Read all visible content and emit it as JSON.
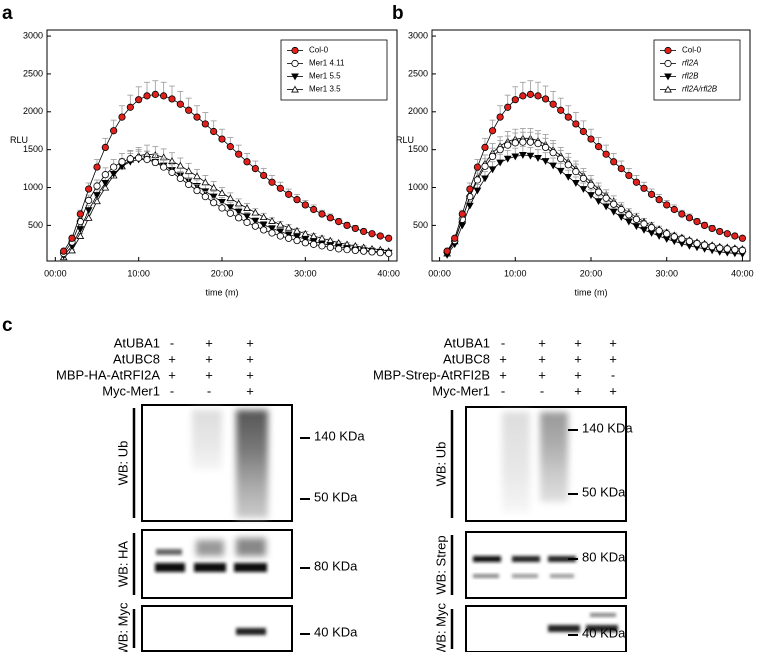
{
  "chart_data": [
    {
      "type": "line",
      "panel": "a",
      "y_label": "RLU",
      "x_label": "time (m)",
      "x": [
        1,
        2,
        3,
        4,
        5,
        6,
        7,
        8,
        9,
        10,
        11,
        12,
        13,
        14,
        15,
        16,
        17,
        18,
        19,
        20,
        21,
        22,
        23,
        24,
        25,
        26,
        27,
        28,
        29,
        30,
        31,
        32,
        33,
        34,
        35,
        36,
        37,
        38,
        39,
        40
      ],
      "xlim": [
        -1,
        41
      ],
      "xticks": [
        {
          "value": 0,
          "label": "00:00"
        },
        {
          "value": 10,
          "label": "10:00"
        },
        {
          "value": 20,
          "label": "20:00"
        },
        {
          "value": 30,
          "label": "30:00"
        },
        {
          "value": 40,
          "label": "40:00"
        }
      ],
      "ylim": [
        30,
        3080
      ],
      "yticks": [
        500,
        1000,
        1500,
        2000,
        2500,
        3000
      ],
      "legend": "top-right",
      "series": [
        {
          "name": "Col-0",
          "color": "#e3211c",
          "marker": "circle",
          "filled": true,
          "italic": false,
          "values": [
            160,
            330,
            650,
            980,
            1270,
            1530,
            1750,
            1930,
            2060,
            2160,
            2210,
            2230,
            2210,
            2170,
            2100,
            2020,
            1930,
            1840,
            1740,
            1640,
            1540,
            1440,
            1340,
            1250,
            1160,
            1070,
            990,
            910,
            840,
            770,
            710,
            650,
            600,
            550,
            500,
            460,
            420,
            390,
            360,
            330
          ],
          "errors": [
            10,
            30,
            50,
            80,
            100,
            120,
            140,
            150,
            160,
            170,
            180,
            180,
            180,
            170,
            170,
            160,
            150,
            150,
            140,
            130,
            120,
            120,
            110,
            100,
            90,
            90,
            80,
            70,
            70,
            60,
            60,
            50,
            50,
            40,
            40,
            40,
            30,
            30,
            30,
            30
          ]
        },
        {
          "name": "Mer1 4.11",
          "color": "#000000",
          "marker": "circle",
          "filled": false,
          "italic": false,
          "values": [
            130,
            280,
            550,
            830,
            1020,
            1170,
            1270,
            1340,
            1380,
            1390,
            1370,
            1330,
            1270,
            1200,
            1120,
            1040,
            960,
            880,
            800,
            730,
            660,
            600,
            540,
            490,
            440,
            400,
            360,
            330,
            300,
            270,
            250,
            230,
            210,
            190,
            180,
            170,
            160,
            150,
            140,
            130
          ],
          "errors": [
            10,
            20,
            40,
            70,
            80,
            90,
            100,
            110,
            110,
            110,
            110,
            110,
            100,
            100,
            90,
            80,
            80,
            70,
            60,
            60,
            50,
            50,
            40,
            40,
            40,
            30,
            30,
            30,
            20,
            20,
            20,
            20,
            20,
            20,
            10,
            10,
            10,
            10,
            10,
            10
          ]
        },
        {
          "name": "Mer1 5.5",
          "color": "#000000",
          "marker": "triangle-down",
          "filled": true,
          "italic": false,
          "values": [
            100,
            230,
            450,
            700,
            900,
            1060,
            1180,
            1280,
            1340,
            1370,
            1370,
            1340,
            1290,
            1230,
            1160,
            1090,
            1020,
            950,
            880,
            810,
            740,
            680,
            620,
            560,
            510,
            460,
            420,
            380,
            350,
            320,
            290,
            260,
            240,
            220,
            200,
            180,
            170,
            160,
            150,
            140
          ],
          "errors": [
            10,
            20,
            40,
            60,
            70,
            80,
            90,
            100,
            110,
            110,
            110,
            110,
            100,
            100,
            90,
            90,
            80,
            80,
            70,
            60,
            60,
            50,
            50,
            40,
            40,
            40,
            30,
            30,
            30,
            30,
            20,
            20,
            20,
            20,
            20,
            10,
            10,
            10,
            10,
            10
          ]
        },
        {
          "name": "Mer1 3.5",
          "color": "#000000",
          "marker": "triangle-up",
          "filled": false,
          "italic": false,
          "values": [
            80,
            170,
            360,
            600,
            820,
            1000,
            1160,
            1280,
            1370,
            1420,
            1440,
            1430,
            1400,
            1350,
            1290,
            1220,
            1150,
            1070,
            1000,
            930,
            860,
            790,
            730,
            670,
            610,
            560,
            510,
            470,
            430,
            390,
            360,
            330,
            300,
            270,
            250,
            230,
            210,
            190,
            180,
            160
          ],
          "errors": [
            10,
            10,
            30,
            50,
            70,
            80,
            90,
            100,
            110,
            110,
            120,
            110,
            110,
            110,
            100,
            100,
            90,
            90,
            80,
            70,
            70,
            60,
            60,
            50,
            50,
            40,
            40,
            40,
            30,
            30,
            30,
            30,
            20,
            20,
            20,
            20,
            20,
            20,
            10,
            10
          ]
        }
      ]
    },
    {
      "type": "line",
      "panel": "b",
      "y_label": "RLU",
      "x_label": "time (m)",
      "x": [
        1,
        2,
        3,
        4,
        5,
        6,
        7,
        8,
        9,
        10,
        11,
        12,
        13,
        14,
        15,
        16,
        17,
        18,
        19,
        20,
        21,
        22,
        23,
        24,
        25,
        26,
        27,
        28,
        29,
        30,
        31,
        32,
        33,
        34,
        35,
        36,
        37,
        38,
        39,
        40
      ],
      "xlim": [
        -1,
        41
      ],
      "xticks": [
        {
          "value": 0,
          "label": "00:00"
        },
        {
          "value": 10,
          "label": "10:00"
        },
        {
          "value": 20,
          "label": "20:00"
        },
        {
          "value": 30,
          "label": "30:00"
        },
        {
          "value": 40,
          "label": "40:00"
        }
      ],
      "ylim": [
        30,
        3080
      ],
      "yticks": [
        500,
        1000,
        1500,
        2000,
        2500,
        3000
      ],
      "legend": "top-right",
      "series": [
        {
          "name": "Col-0",
          "color": "#e3211c",
          "marker": "circle",
          "filled": true,
          "italic": false,
          "values": [
            160,
            330,
            650,
            980,
            1270,
            1530,
            1750,
            1930,
            2060,
            2160,
            2210,
            2230,
            2210,
            2170,
            2100,
            2020,
            1930,
            1840,
            1740,
            1640,
            1540,
            1440,
            1340,
            1250,
            1160,
            1070,
            990,
            910,
            840,
            770,
            710,
            650,
            600,
            550,
            500,
            460,
            420,
            390,
            360,
            330
          ],
          "errors": [
            10,
            30,
            50,
            80,
            100,
            120,
            140,
            150,
            160,
            170,
            180,
            180,
            180,
            170,
            170,
            160,
            150,
            150,
            140,
            130,
            120,
            120,
            110,
            100,
            90,
            90,
            80,
            70,
            70,
            60,
            60,
            50,
            50,
            40,
            40,
            40,
            30,
            30,
            30,
            30
          ]
        },
        {
          "name": "rfl2A",
          "color": "#000000",
          "marker": "circle",
          "filled": false,
          "italic": true,
          "values": [
            150,
            300,
            580,
            880,
            1100,
            1280,
            1410,
            1500,
            1560,
            1590,
            1600,
            1600,
            1580,
            1530,
            1460,
            1380,
            1300,
            1210,
            1120,
            1030,
            940,
            860,
            780,
            710,
            640,
            580,
            520,
            470,
            430,
            390,
            350,
            320,
            290,
            260,
            240,
            220,
            200,
            190,
            180,
            170
          ],
          "errors": [
            10,
            20,
            50,
            70,
            90,
            100,
            110,
            120,
            120,
            130,
            130,
            130,
            130,
            120,
            120,
            110,
            100,
            100,
            90,
            80,
            80,
            70,
            60,
            60,
            50,
            50,
            40,
            40,
            30,
            30,
            30,
            30,
            20,
            20,
            20,
            20,
            20,
            20,
            10,
            10
          ]
        },
        {
          "name": "rfl2B",
          "color": "#000000",
          "marker": "triangle-down",
          "filled": true,
          "italic": true,
          "values": [
            110,
            250,
            500,
            760,
            960,
            1120,
            1240,
            1330,
            1380,
            1410,
            1430,
            1420,
            1390,
            1350,
            1290,
            1220,
            1140,
            1060,
            980,
            900,
            820,
            750,
            680,
            610,
            550,
            490,
            440,
            400,
            360,
            320,
            290,
            260,
            230,
            210,
            190,
            170,
            150,
            140,
            130,
            120
          ],
          "errors": [
            10,
            20,
            40,
            60,
            80,
            90,
            100,
            110,
            110,
            110,
            110,
            110,
            110,
            110,
            100,
            100,
            90,
            80,
            80,
            70,
            70,
            60,
            50,
            50,
            40,
            40,
            40,
            30,
            30,
            30,
            20,
            20,
            20,
            20,
            20,
            10,
            10,
            10,
            10,
            10
          ]
        },
        {
          "name": "rfl2A/rfl2B",
          "color": "#000000",
          "marker": "triangle-up",
          "filled": false,
          "italic": true,
          "values": [
            130,
            290,
            580,
            890,
            1130,
            1320,
            1460,
            1550,
            1610,
            1640,
            1650,
            1650,
            1620,
            1570,
            1500,
            1420,
            1340,
            1250,
            1160,
            1070,
            980,
            900,
            820,
            740,
            670,
            610,
            550,
            500,
            450,
            410,
            370,
            340,
            310,
            280,
            260,
            240,
            220,
            210,
            200,
            190
          ],
          "errors": [
            10,
            20,
            50,
            70,
            90,
            110,
            120,
            120,
            130,
            130,
            130,
            130,
            130,
            130,
            120,
            110,
            110,
            100,
            90,
            90,
            80,
            70,
            70,
            60,
            50,
            50,
            40,
            40,
            40,
            30,
            30,
            30,
            20,
            20,
            20,
            20,
            20,
            20,
            20,
            20
          ]
        }
      ]
    }
  ],
  "panel_c": {
    "label": "c",
    "blots": [
      {
        "rows": [
          {
            "label": "AtUBA1",
            "signs": [
              "-",
              "+",
              "+"
            ]
          },
          {
            "label": "AtUBC8",
            "signs": [
              "+",
              "+",
              "+"
            ]
          },
          {
            "label": "MBP-HA-AtRFI2A",
            "signs": [
              "+",
              "+",
              "+"
            ]
          },
          {
            "label": "Myc-Mer1",
            "signs": [
              "-",
              "-",
              "+"
            ]
          }
        ],
        "panels": [
          {
            "label": "WB: Ub",
            "markers": [
              "140 KDa",
              "50 KDa"
            ]
          },
          {
            "label": "WB: HA",
            "markers": [
              "80 KDa"
            ]
          },
          {
            "label": "WB: Myc",
            "markers": [
              "40 KDa"
            ]
          }
        ]
      },
      {
        "rows": [
          {
            "label": "AtUBA1",
            "signs": [
              "-",
              "+",
              "+",
              "+"
            ]
          },
          {
            "label": "AtUBC8",
            "signs": [
              "+",
              "+",
              "+",
              "+"
            ]
          },
          {
            "label": "MBP-Strep-AtRFI2B",
            "signs": [
              "+",
              "+",
              "+",
              "-"
            ]
          },
          {
            "label": "Myc-Mer1",
            "signs": [
              "-",
              "-",
              "+",
              "+"
            ]
          }
        ],
        "panels": [
          {
            "label": "WB: Ub",
            "markers": [
              "140 KDa",
              "50 KDa"
            ]
          },
          {
            "label": "WB: Strep",
            "markers": [
              "80 KDa"
            ]
          },
          {
            "label": "WB: Myc",
            "markers": [
              "40 KDa"
            ]
          }
        ]
      }
    ]
  }
}
